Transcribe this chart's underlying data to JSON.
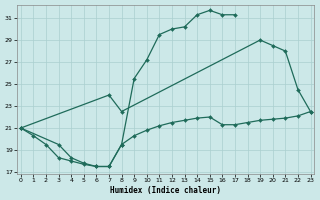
{
  "background_color": "#cce8e8",
  "grid_color": "#aacfcf",
  "line_color": "#1f6b5a",
  "x_label": "Humidex (Indice chaleur)",
  "xlim": [
    -0.3,
    23.3
  ],
  "ylim": [
    16.8,
    32.2
  ],
  "yticks": [
    17,
    19,
    21,
    23,
    25,
    27,
    29,
    31
  ],
  "xticks": [
    0,
    1,
    2,
    3,
    4,
    5,
    6,
    7,
    8,
    9,
    10,
    11,
    12,
    13,
    14,
    15,
    16,
    17,
    18,
    19,
    20,
    21,
    22,
    23
  ],
  "curve1_x": [
    0,
    1,
    2,
    3,
    4,
    5,
    6,
    7,
    8,
    9,
    10,
    11,
    12,
    13,
    14,
    15,
    16,
    17
  ],
  "curve1_y": [
    21.0,
    20.3,
    19.5,
    18.3,
    18.0,
    17.7,
    17.5,
    17.5,
    19.5,
    25.5,
    27.2,
    29.5,
    30.0,
    30.2,
    31.3,
    31.7,
    31.3,
    31.3
  ],
  "curve2_x": [
    0,
    7,
    8,
    19,
    20,
    21,
    22,
    23
  ],
  "curve2_y": [
    21.0,
    24.0,
    22.5,
    29.0,
    28.5,
    28.0,
    24.5,
    22.5
  ],
  "curve3_x": [
    0,
    3,
    4,
    5,
    6,
    7,
    8,
    9,
    10,
    11,
    12,
    13,
    14,
    15,
    16,
    17,
    18,
    19,
    20,
    21,
    22,
    23
  ],
  "curve3_y": [
    21.0,
    19.5,
    18.3,
    17.8,
    17.5,
    17.5,
    19.5,
    20.3,
    20.8,
    21.2,
    21.5,
    21.7,
    21.9,
    22.0,
    21.3,
    21.3,
    21.5,
    21.7,
    21.8,
    21.9,
    22.1,
    22.5
  ]
}
